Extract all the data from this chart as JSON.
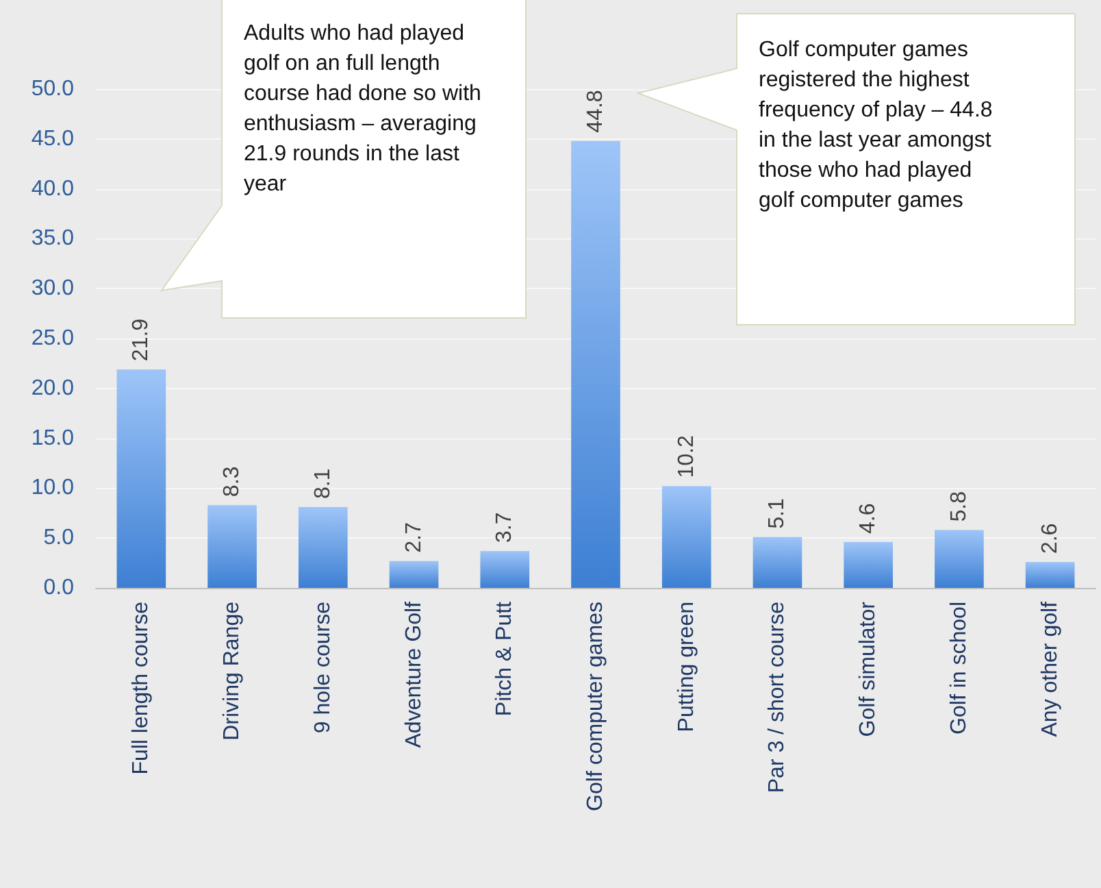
{
  "chart_data": {
    "type": "bar",
    "categories": [
      "Full length course",
      "Driving Range",
      "9 hole course",
      "Adventure Golf",
      "Pitch & Putt",
      "Golf computer games",
      "Putting green",
      "Par 3 / short course",
      "Golf simulator",
      "Golf in school",
      "Any other golf"
    ],
    "values": [
      21.9,
      8.3,
      8.1,
      2.7,
      3.7,
      44.8,
      10.2,
      5.1,
      4.6,
      5.8,
      2.6
    ],
    "color": "#3d7fd3",
    "ylim": [
      0,
      50
    ],
    "yticks": [
      {
        "value": 0,
        "label": "0.0"
      },
      {
        "value": 5,
        "label": "5.0"
      },
      {
        "value": 10,
        "label": "10.0"
      },
      {
        "value": 15,
        "label": "15.0"
      },
      {
        "value": 20,
        "label": "20.0"
      },
      {
        "value": 25,
        "label": "25.0"
      },
      {
        "value": 30,
        "label": "30.0"
      },
      {
        "value": 35,
        "label": "35.0"
      },
      {
        "value": 40,
        "label": "40.0"
      },
      {
        "value": 45,
        "label": "45.0"
      },
      {
        "value": 50,
        "label": "50.0"
      }
    ],
    "grid": "y",
    "data_labels": true,
    "annotations": [
      "Adults who had played golf on an full length course had done so with enthusiasm – averaging 21.9 rounds in the last year",
      "Golf computer games registered the highest frequency of play – 44.8 in the last year amongst those who had played golf computer games"
    ]
  }
}
